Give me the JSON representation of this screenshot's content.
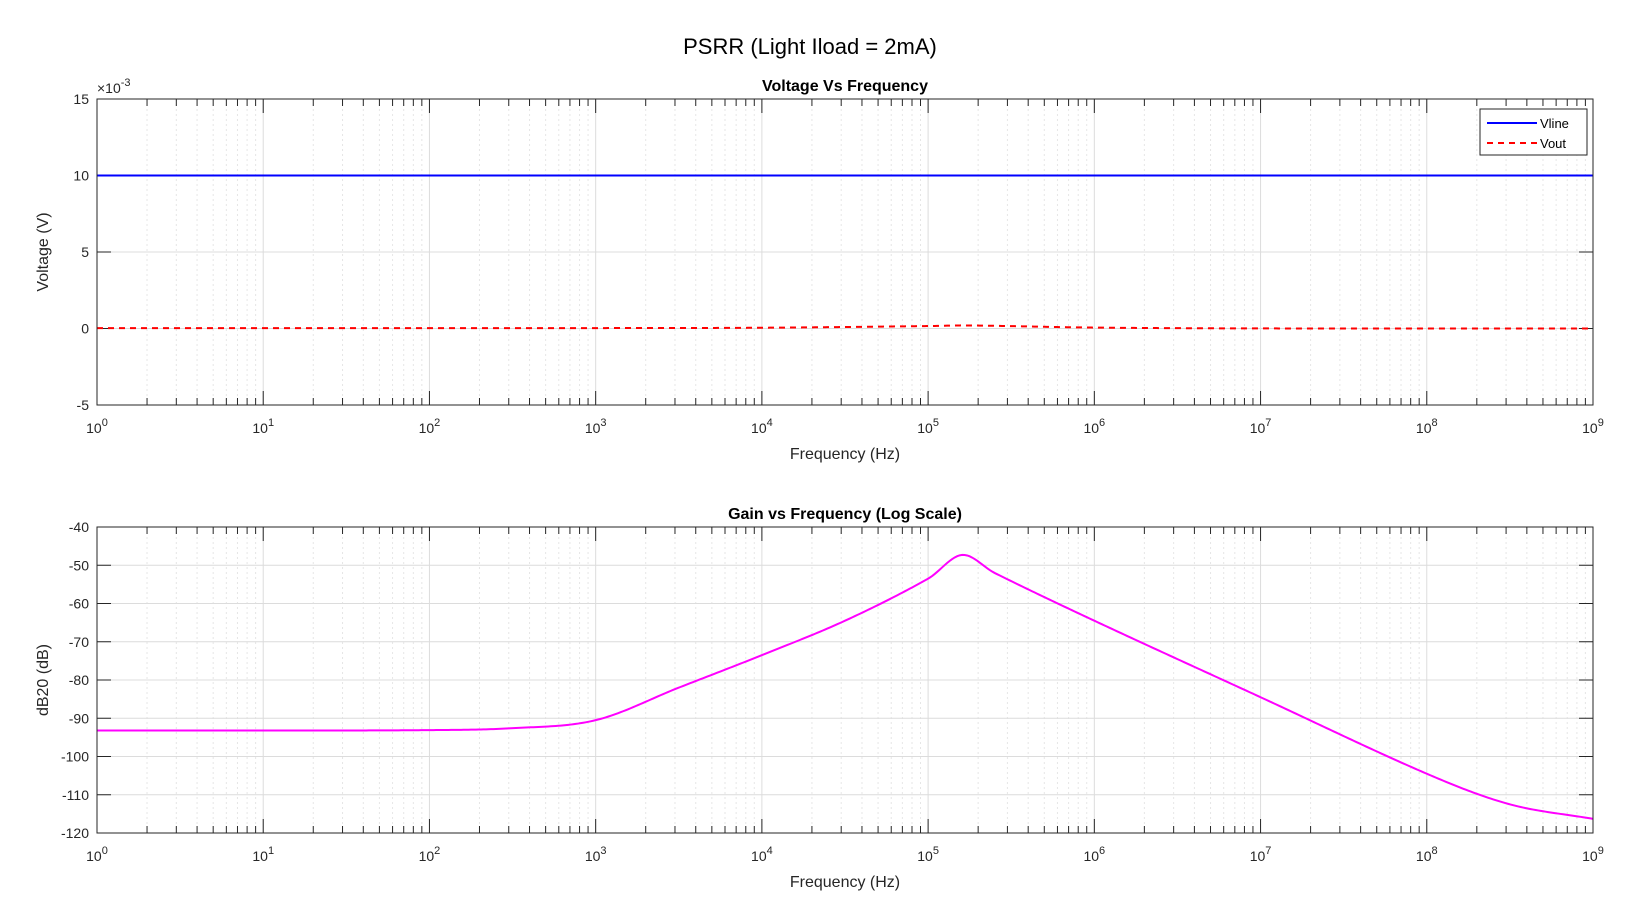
{
  "figure_title": "PSRR (Light Iload = 2mA)",
  "colors": {
    "vline": "#0000ff",
    "vout": "#ff0000",
    "gain": "#ff00ff",
    "grid": "#dcdcdc",
    "axis": "#262626"
  },
  "chart_data": [
    {
      "type": "line",
      "title": "Voltage Vs Frequency",
      "xlabel": "Frequency (Hz)",
      "ylabel": "Voltage (V)",
      "xscale": "log",
      "xlim": [
        1,
        1000000000
      ],
      "ylim": [
        -0.005,
        0.015
      ],
      "y_exponent_label": "×10",
      "y_exponent_power": "-3",
      "yticks": [
        -5,
        0,
        5,
        10,
        15
      ],
      "ytick_labels": [
        "-5",
        "0",
        "5",
        "10",
        "15"
      ],
      "xtick_base": "10",
      "xtick_powers": [
        "0",
        "1",
        "2",
        "3",
        "4",
        "5",
        "6",
        "7",
        "8",
        "9"
      ],
      "grid": true,
      "legend": "top-right",
      "series": [
        {
          "name": "Vline",
          "style": "solid",
          "color": "#0000ff",
          "points": [
            [
              1,
              0.01
            ],
            [
              1000000000,
              0.01
            ]
          ]
        },
        {
          "name": "Vout",
          "style": "dashed",
          "color": "#ff0000",
          "points": [
            [
              1,
              2.2e-05
            ],
            [
              1000,
              2.8e-05
            ],
            [
              10000,
              5e-05
            ],
            [
              100000,
              0.00016
            ],
            [
              170000,
              0.0002
            ],
            [
              1000000,
              6e-05
            ],
            [
              10000000,
              6e-06
            ],
            [
              1000000000,
              1.5e-06
            ]
          ]
        }
      ]
    },
    {
      "type": "line",
      "title": "Gain vs Frequency (Log Scale)",
      "xlabel": "Frequency (Hz)",
      "ylabel": "dB20 (dB)",
      "xscale": "log",
      "xlim": [
        1,
        1000000000
      ],
      "ylim": [
        -120,
        -40
      ],
      "yticks": [
        -120,
        -110,
        -100,
        -90,
        -80,
        -70,
        -60,
        -50,
        -40
      ],
      "ytick_labels": [
        "-120",
        "-110",
        "-100",
        "-90",
        "-80",
        "-70",
        "-60",
        "-50",
        "-40"
      ],
      "xtick_base": "10",
      "xtick_powers": [
        "0",
        "1",
        "2",
        "3",
        "4",
        "5",
        "6",
        "7",
        "8",
        "9"
      ],
      "grid": true,
      "series": [
        {
          "color": "#ff00ff",
          "points": [
            [
              1,
              -93.2
            ],
            [
              10,
              -93.2
            ],
            [
              100,
              -93.1
            ],
            [
              316,
              -92.6
            ],
            [
              1000,
              -90.5
            ],
            [
              3162,
              -82
            ],
            [
              10000,
              -73.5
            ],
            [
              31623,
              -64.5
            ],
            [
              100000,
              -53.5
            ],
            [
              160000,
              -47.3
            ],
            [
              251000,
              -52
            ],
            [
              1000000,
              -64.5
            ],
            [
              10000000,
              -84.5
            ],
            [
              100000000,
              -104.5
            ],
            [
              316000000,
              -112.5
            ],
            [
              1000000000,
              -116.3
            ]
          ]
        }
      ]
    }
  ]
}
